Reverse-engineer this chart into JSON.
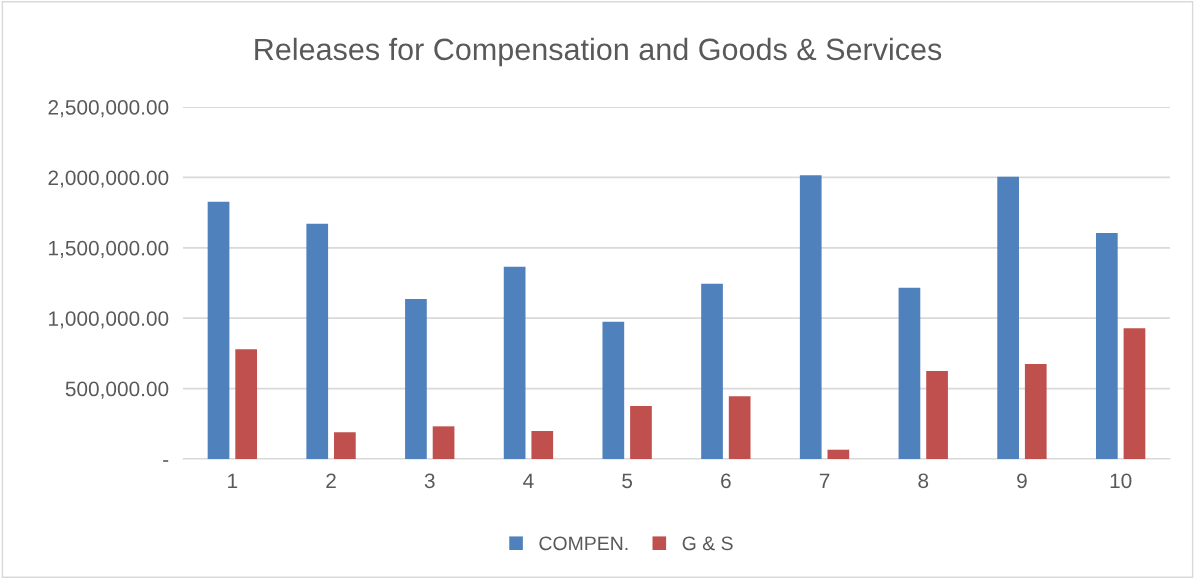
{
  "chart_data": {
    "type": "bar",
    "title": "Releases for Compensation and Goods & Services",
    "categories": [
      "1",
      "2",
      "3",
      "4",
      "5",
      "6",
      "7",
      "8",
      "9",
      "10"
    ],
    "series": [
      {
        "name": "COMPEN.",
        "color": "#4f81bd",
        "values": [
          1827000,
          1671000,
          1137000,
          1365000,
          974000,
          1245000,
          2015000,
          1216000,
          2005000,
          1605000
        ]
      },
      {
        "name": "G & S",
        "color": "#c0504d",
        "values": [
          780000,
          190000,
          232000,
          199000,
          377000,
          446000,
          66000,
          625000,
          674000,
          929000
        ]
      }
    ],
    "ylim": [
      0,
      2500000
    ],
    "yticks": [
      {
        "value": 0,
        "label": "-"
      },
      {
        "value": 500000,
        "label": "500,000.00"
      },
      {
        "value": 1000000,
        "label": "1,000,000.00"
      },
      {
        "value": 1500000,
        "label": "1,500,000.00"
      },
      {
        "value": 2000000,
        "label": "2,000,000.00"
      },
      {
        "value": 2500000,
        "label": "2,500,000.00"
      }
    ],
    "grid": "y",
    "legend": "bottom"
  }
}
